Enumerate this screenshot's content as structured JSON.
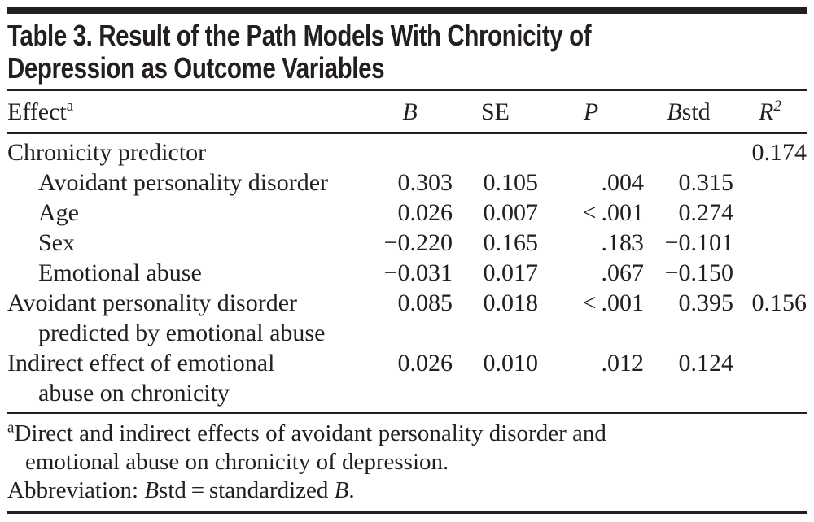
{
  "table": {
    "title_line1": "Table 3. Result of the Path Models With Chronicity of",
    "title_line2": "Depression as Outcome Variables",
    "header": {
      "effect": "Effect",
      "effect_sup": "a",
      "b": "B",
      "se": "SE",
      "p": "P",
      "bstd_b": "B",
      "bstd_suffix": "std",
      "r2_base": "R",
      "r2_sup": "2"
    },
    "rows": [
      {
        "label": "Chronicity predictor",
        "label2": "",
        "b": "",
        "se": "",
        "p": "",
        "bstd": "",
        "r2": "0.174"
      },
      {
        "label": "Avoidant personality disorder",
        "label2": "",
        "b": "0.303",
        "se": "0.105",
        "p": ".004",
        "bstd": "0.315",
        "r2": ""
      },
      {
        "label": "Age",
        "label2": "",
        "b": "0.026",
        "se": "0.007",
        "p": "< .001",
        "bstd": "0.274",
        "r2": ""
      },
      {
        "label": "Sex",
        "label2": "",
        "b": "−0.220",
        "se": "0.165",
        "p": ".183",
        "bstd": "−0.101",
        "r2": ""
      },
      {
        "label": "Emotional abuse",
        "label2": "",
        "b": "−0.031",
        "se": "0.017",
        "p": ".067",
        "bstd": "−0.150",
        "r2": ""
      },
      {
        "label": "Avoidant personality disorder",
        "label2": "predicted by emotional abuse",
        "b": "0.085",
        "se": "0.018",
        "p": "< .001",
        "bstd": "0.395",
        "r2": "0.156"
      },
      {
        "label": "Indirect effect of emotional",
        "label2": "abuse on chronicity",
        "b": "0.026",
        "se": "0.010",
        "p": ".012",
        "bstd": "0.124",
        "r2": ""
      }
    ],
    "footnote_a": {
      "sup": "a",
      "line1": "Direct and indirect effects of avoidant personality disorder and",
      "line2": "emotional abuse on chronicity of depression."
    },
    "abbreviation": {
      "prefix": "Abbreviation: ",
      "b1": "B",
      "mid1": "std",
      "mid2": " = standardized ",
      "b2": "B",
      "suffix": "."
    }
  }
}
